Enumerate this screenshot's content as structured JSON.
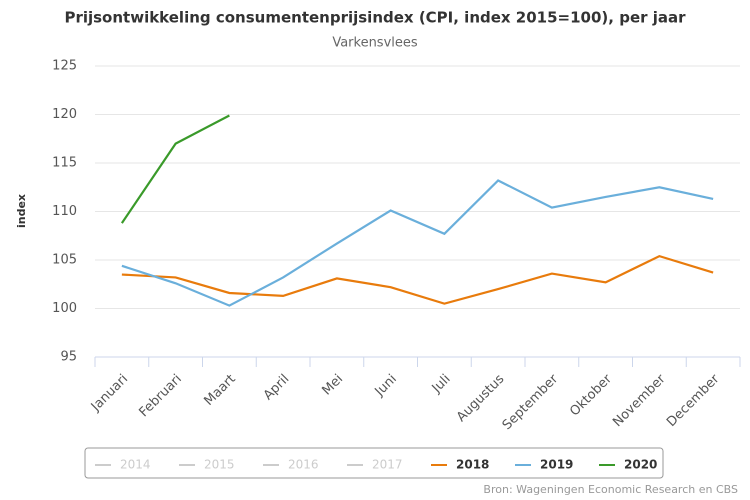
{
  "chart_data": {
    "type": "line",
    "title": "Prijsontwikkeling consumentenprijsindex (CPI, index 2015=100), per jaar",
    "subtitle": "Varkensvlees",
    "y_label": "index",
    "source": "Bron: Wageningen Economic Research en CBS",
    "categories": [
      "Januari",
      "Februari",
      "Maart",
      "April",
      "Mei",
      "Juni",
      "Juli",
      "Augustus",
      "September",
      "Oktober",
      "November",
      "December"
    ],
    "ylim": [
      95,
      125
    ],
    "yticks": [
      95,
      100,
      105,
      110,
      115,
      120,
      125
    ],
    "grid": true,
    "series": [
      {
        "name": "2014",
        "color": "#cccccc",
        "visible": false,
        "values": [
          null,
          null,
          null,
          null,
          null,
          null,
          null,
          null,
          null,
          null,
          null,
          null
        ]
      },
      {
        "name": "2015",
        "color": "#cccccc",
        "visible": false,
        "values": [
          null,
          null,
          null,
          null,
          null,
          null,
          null,
          null,
          null,
          null,
          null,
          null
        ]
      },
      {
        "name": "2016",
        "color": "#cccccc",
        "visible": false,
        "values": [
          null,
          null,
          null,
          null,
          null,
          null,
          null,
          null,
          null,
          null,
          null,
          null
        ]
      },
      {
        "name": "2017",
        "color": "#cccccc",
        "visible": false,
        "values": [
          null,
          null,
          null,
          null,
          null,
          null,
          null,
          null,
          null,
          null,
          null,
          null
        ]
      },
      {
        "name": "2018",
        "color": "#e87b0c",
        "visible": true,
        "values": [
          103.5,
          103.2,
          101.6,
          101.3,
          103.1,
          102.2,
          100.5,
          102.0,
          103.6,
          102.7,
          105.4,
          103.7
        ]
      },
      {
        "name": "2019",
        "color": "#6aafdb",
        "visible": true,
        "values": [
          104.4,
          102.6,
          100.3,
          103.2,
          106.7,
          110.1,
          107.7,
          113.2,
          110.4,
          111.5,
          112.5,
          111.3
        ]
      },
      {
        "name": "2020",
        "color": "#3a9a2a",
        "visible": true,
        "values": [
          108.8,
          117.0,
          119.9,
          null,
          null,
          null,
          null,
          null,
          null,
          null,
          null,
          null
        ]
      }
    ]
  }
}
